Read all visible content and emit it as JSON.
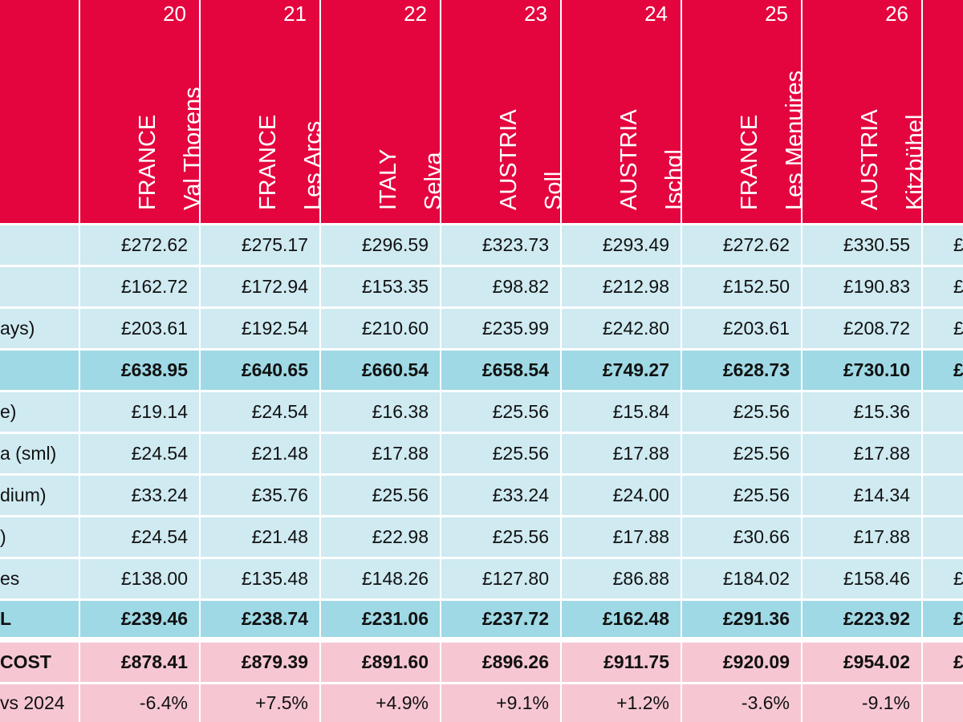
{
  "columns": [
    {
      "num": "20",
      "country": "FRANCE",
      "resort": "Val Thorens"
    },
    {
      "num": "21",
      "country": "FRANCE",
      "resort": "Les Arcs"
    },
    {
      "num": "22",
      "country": "ITALY",
      "resort": "Selva"
    },
    {
      "num": "23",
      "country": "AUSTRIA",
      "resort": "Soll"
    },
    {
      "num": "24",
      "country": "AUSTRIA",
      "resort": "Ischgl"
    },
    {
      "num": "25",
      "country": "FRANCE",
      "resort": "Les Menuires"
    },
    {
      "num": "26",
      "country": "AUSTRIA",
      "resort": "Kitzbühel"
    }
  ],
  "rows": [
    {
      "label": "",
      "style": "light",
      "values": [
        "£272.62",
        "£275.17",
        "£296.59",
        "£323.73",
        "£293.49",
        "£272.62",
        "£330.55"
      ],
      "partial": "£"
    },
    {
      "label": "",
      "style": "light",
      "values": [
        "£162.72",
        "£172.94",
        "£153.35",
        "£98.82",
        "£212.98",
        "£152.50",
        "£190.83"
      ],
      "partial": "£"
    },
    {
      "label": "ays)",
      "style": "light",
      "values": [
        "£203.61",
        "£192.54",
        "£210.60",
        "£235.99",
        "£242.80",
        "£203.61",
        "£208.72"
      ],
      "partial": "£"
    },
    {
      "label": "",
      "style": "total",
      "values": [
        "£638.95",
        "£640.65",
        "£660.54",
        "£658.54",
        "£749.27",
        "£628.73",
        "£730.10"
      ],
      "partial": "£"
    },
    {
      "label": "e)",
      "style": "light",
      "values": [
        "£19.14",
        "£24.54",
        "£16.38",
        "£25.56",
        "£15.84",
        "£25.56",
        "£15.36"
      ],
      "partial": ""
    },
    {
      "label": "a (sml)",
      "style": "light",
      "values": [
        "£24.54",
        "£21.48",
        "£17.88",
        "£25.56",
        "£17.88",
        "£25.56",
        "£17.88"
      ],
      "partial": ""
    },
    {
      "label": "dium)",
      "style": "light",
      "values": [
        "£33.24",
        "£35.76",
        "£25.56",
        "£33.24",
        "£24.00",
        "£25.56",
        "£14.34"
      ],
      "partial": ""
    },
    {
      "label": ")",
      "style": "light",
      "values": [
        "£24.54",
        "£21.48",
        "£22.98",
        "£25.56",
        "£17.88",
        "£30.66",
        "£17.88"
      ],
      "partial": ""
    },
    {
      "label": "es",
      "style": "light",
      "values": [
        "£138.00",
        "£135.48",
        "£148.26",
        "£127.80",
        "£86.88",
        "£184.02",
        "£158.46"
      ],
      "partial": "£"
    },
    {
      "label": "L",
      "style": "total",
      "values": [
        "£239.46",
        "£238.74",
        "£231.06",
        "£237.72",
        "£162.48",
        "£291.36",
        "£223.92"
      ],
      "partial": "£"
    },
    {
      "label": "COST",
      "style": "pinkb",
      "values": [
        "£878.41",
        "£879.39",
        "£891.60",
        "£896.26",
        "£911.75",
        "£920.09",
        "£954.02"
      ],
      "partial": "£"
    },
    {
      "label": "vs 2024",
      "style": "pink",
      "values": [
        "-6.4%",
        "+7.5%",
        "+4.9%",
        "+9.1%",
        "+1.2%",
        "-3.6%",
        "-9.1%"
      ],
      "partial": ""
    }
  ]
}
